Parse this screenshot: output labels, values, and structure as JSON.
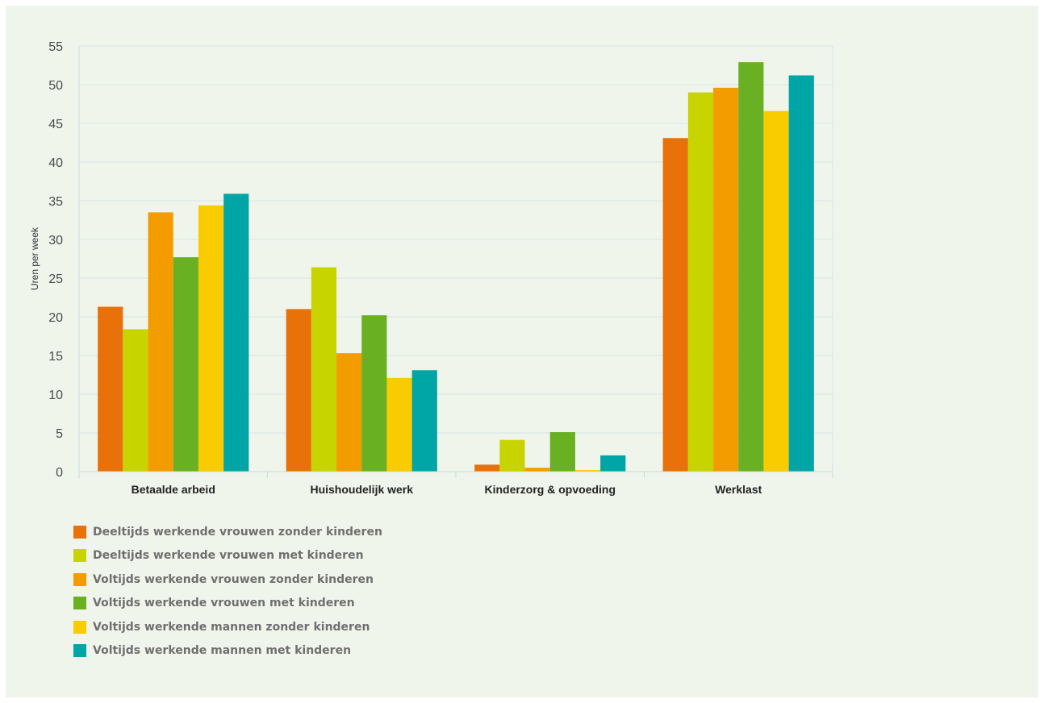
{
  "colors": {
    "background": "#f0f5ec",
    "gridline": "#d7e3e6",
    "axis": "#c9d9dd"
  },
  "legend": {
    "items": [
      {
        "label": "Deeltijds werkende vrouwen zonder kinderen",
        "color": "#e8710a"
      },
      {
        "label": "Deeltijds werkende vrouwen met kinderen",
        "color": "#c8d400"
      },
      {
        "label": "Voltijds werkende vrouwen zonder kinderen",
        "color": "#f39c00"
      },
      {
        "label": "Voltijds werkende vrouwen met kinderen",
        "color": "#6ab023"
      },
      {
        "label": "Voltijds werkende mannen zonder kinderen",
        "color": "#f9cc00"
      },
      {
        "label": "Voltijds werkende mannen met kinderen",
        "color": "#00a6a6"
      }
    ]
  },
  "chart_data": {
    "type": "bar",
    "title": "",
    "xlabel": "",
    "ylabel": "Uren per week",
    "ylim": [
      0,
      55
    ],
    "yticks": [
      0,
      5,
      10,
      15,
      20,
      25,
      30,
      35,
      40,
      45,
      50,
      55
    ],
    "grid": true,
    "legend_position": "bottom-left",
    "categories": [
      "Betaalde arbeid",
      "Huishoudelijk werk",
      "Kinderzorg & opvoeding",
      "Werklast"
    ],
    "series": [
      {
        "name": "Deeltijds werkende vrouwen zonder kinderen",
        "color": "#e8710a",
        "values": [
          21.3,
          21.0,
          0.9,
          43.1
        ]
      },
      {
        "name": "Deeltijds werkende vrouwen met kinderen",
        "color": "#c8d400",
        "values": [
          18.4,
          26.4,
          4.1,
          49.0
        ]
      },
      {
        "name": "Voltijds werkende vrouwen zonder kinderen",
        "color": "#f39c00",
        "values": [
          33.5,
          15.3,
          0.5,
          49.6
        ]
      },
      {
        "name": "Voltijds werkende vrouwen met kinderen",
        "color": "#6ab023",
        "values": [
          27.7,
          20.2,
          5.1,
          52.9
        ]
      },
      {
        "name": "Voltijds werkende mannen zonder kinderen",
        "color": "#f9cc00",
        "values": [
          34.4,
          12.1,
          0.2,
          46.6
        ]
      },
      {
        "name": "Voltijds werkende mannen met kinderen",
        "color": "#00a6a6",
        "values": [
          35.9,
          13.1,
          2.1,
          51.2
        ]
      }
    ]
  }
}
